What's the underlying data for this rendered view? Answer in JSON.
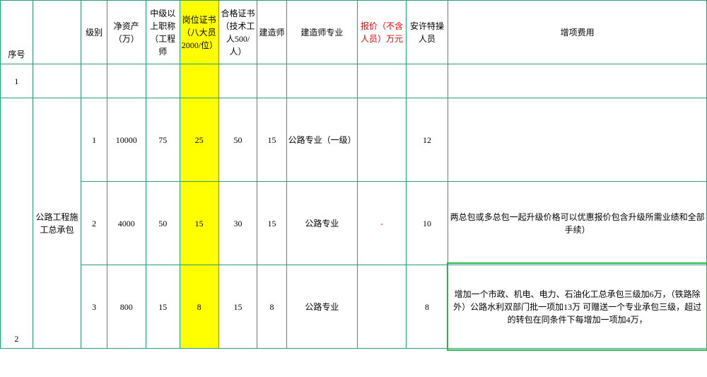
{
  "headers": {
    "seq": "序号",
    "name": "",
    "level": "级别",
    "asset": "净资产（万）",
    "mid": "中级以上职称（工程师",
    "post": "岗位证书（八大员2000/位）",
    "cert": "合格证书（技术工人500/人）",
    "builder": "建造师",
    "builderMajor": "建造师专业",
    "price": "报价（不含人员）万元",
    "special": "安许特操人员",
    "extra": "增项费用"
  },
  "row1_seq": "1",
  "group": {
    "seq": "2",
    "name": "公路工程施工总承包",
    "rows": [
      {
        "lvl": "1",
        "asset": "10000",
        "mid": "75",
        "post": "25",
        "cert": "50",
        "builder": "15",
        "major": "公路专业（一级）",
        "price": "",
        "special": "12",
        "extra": ""
      },
      {
        "lvl": "2",
        "asset": "4000",
        "mid": "50",
        "post": "15",
        "cert": "30",
        "builder": "15",
        "major": "公路专业",
        "price": "-",
        "special": "10",
        "extra": "两总包或多总包一起升级价格可以优惠报价包含升级所需业绩和全部手续）"
      },
      {
        "lvl": "3",
        "asset": "800",
        "mid": "15",
        "post": "8",
        "cert": "15",
        "builder": "8",
        "major": "公路专业",
        "price": "",
        "special": "8",
        "extra": "增加一个市政、机电、电力、石油化工总承包三级加6万，（铁路除外）公路水利双部门批一项加13万 可赠送一个专业承包三级，超过的转包在同条件下每增加一项加4万，"
      }
    ]
  }
}
